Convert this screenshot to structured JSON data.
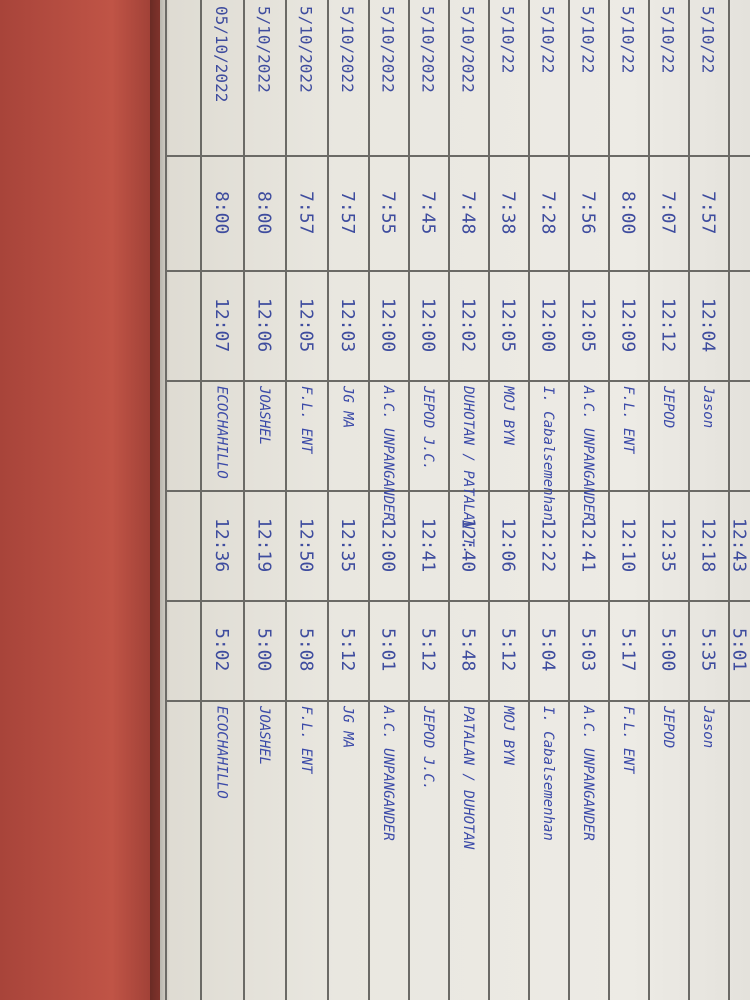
{
  "document": {
    "type": "handwritten attendance log",
    "ink_color": "#3e4c9e",
    "paper_color": "#e9e7e0",
    "background_color": "#b24a3e",
    "rows": [
      {
        "date": "05/10/2022",
        "am_in": "8:00",
        "am_out": "12:07",
        "am_signature": "ECOCHAHILLO",
        "pm_in": "12:36",
        "pm_out": "5:02",
        "pm_signature": "ECOCHAHILLO"
      },
      {
        "date": "5/10/2022",
        "am_in": "8:00",
        "am_out": "12:06",
        "am_signature": "JOASHEL",
        "pm_in": "12:19",
        "pm_out": "5:00",
        "pm_signature": "JOASHEL"
      },
      {
        "date": "5/10/2022",
        "am_in": "7:57",
        "am_out": "12:05",
        "am_signature": "F.L. ENT",
        "pm_in": "12:50",
        "pm_out": "5:08",
        "pm_signature": "F.L. ENT"
      },
      {
        "date": "5/10/2022",
        "am_in": "7:57",
        "am_out": "12:03",
        "am_signature": "JG MA",
        "pm_in": "12:35",
        "pm_out": "5:12",
        "pm_signature": "JG MA"
      },
      {
        "date": "5/10/2022",
        "am_in": "7:55",
        "am_out": "12:00",
        "am_signature": "A.C. UNPANGANDER",
        "pm_in": "12:00",
        "pm_out": "5:01",
        "pm_signature": "A.C. UNPANGANDER"
      },
      {
        "date": "5/10/2022",
        "am_in": "7:45",
        "am_out": "12:00",
        "am_signature": "JEPOD J.C.",
        "pm_in": "12:41",
        "pm_out": "5:12",
        "pm_signature": "JEPOD J.C."
      },
      {
        "date": "5/10/2022",
        "am_in": "7:48",
        "am_out": "12:02",
        "am_signature": "DUHOTAN / PATALAN T.",
        "pm_in": "12:40",
        "pm_out": "5:48",
        "pm_signature": "PATALAN / DUHOTAN"
      },
      {
        "date": "5/10/22",
        "am_in": "7:38",
        "am_out": "12:05",
        "am_signature": "MOJ BYN",
        "pm_in": "12:06",
        "pm_out": "5:12",
        "pm_signature": "MOJ BYN"
      },
      {
        "date": "5/10/22",
        "am_in": "7:28",
        "am_out": "12:00",
        "am_signature": "I. Cabalsemenhan",
        "pm_in": "12:22",
        "pm_out": "5:04",
        "pm_signature": "I. Cabalsemenhan"
      },
      {
        "date": "5/10/22",
        "am_in": "7:56",
        "am_out": "12:05",
        "am_signature": "A.C. UNPANGANDER",
        "pm_in": "12:41",
        "pm_out": "5:03",
        "pm_signature": "A.C. UNPANGANDER"
      },
      {
        "date": "5/10/22",
        "am_in": "8:00",
        "am_out": "12:09",
        "am_signature": "F.L. ENT",
        "pm_in": "12:10",
        "pm_out": "5:17",
        "pm_signature": "F.L. ENT"
      },
      {
        "date": "5/10/22",
        "am_in": "7:07",
        "am_out": "12:12",
        "am_signature": "JEPOD",
        "pm_in": "12:35",
        "pm_out": "5:00",
        "pm_signature": "JEPOD"
      },
      {
        "date": "5/10/22",
        "am_in": "7:57",
        "am_out": "12:04",
        "am_signature": "Jason",
        "pm_in": "12:18",
        "pm_out": "5:35",
        "pm_signature": "Jason"
      },
      {
        "date": "",
        "am_in": "",
        "am_out": "",
        "am_signature": "",
        "pm_in": "12:43",
        "pm_out": "5:01",
        "pm_signature": ""
      }
    ]
  }
}
